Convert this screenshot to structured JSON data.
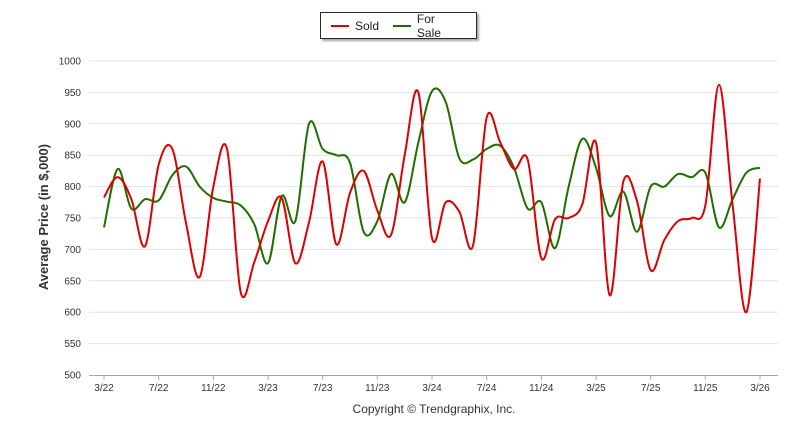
{
  "chart_data": {
    "type": "line",
    "title": "",
    "xlabel": "",
    "ylabel": "Average Price (in $,000)",
    "ylim": [
      500,
      1000
    ],
    "yticks": [
      "500",
      "550",
      "600",
      "650",
      "700",
      "750",
      "800",
      "850",
      "900",
      "950",
      "1000"
    ],
    "xticks": [
      "3/22",
      "7/22",
      "11/22",
      "3/23",
      "7/23",
      "11/23",
      "3/24",
      "7/24",
      "11/24",
      "3/25",
      "7/25",
      "11/25",
      "3/26"
    ],
    "x": [
      "3/22",
      "4/22",
      "5/22",
      "6/22",
      "7/22",
      "8/22",
      "9/22",
      "10/22",
      "11/22",
      "12/22",
      "1/23",
      "2/23",
      "3/23",
      "4/23",
      "5/23",
      "6/23",
      "7/23",
      "8/23",
      "9/23",
      "10/23",
      "11/23",
      "12/23",
      "1/24",
      "2/24",
      "3/24",
      "4/24",
      "5/24",
      "6/24",
      "7/24",
      "8/24",
      "9/24",
      "10/24",
      "11/24",
      "12/24",
      "1/25",
      "2/25",
      "3/25",
      "4/25",
      "5/25",
      "6/25",
      "7/25",
      "8/25",
      "9/25",
      "10/25",
      "11/25",
      "12/25",
      "1/26",
      "2/26",
      "3/26"
    ],
    "series": [
      {
        "name": "Sold",
        "color": "#dd0000",
        "values": [
          783,
          815,
          780,
          705,
          835,
          860,
          742,
          656,
          800,
          860,
          632,
          680,
          745,
          782,
          678,
          743,
          840,
          708,
          790,
          825,
          762,
          723,
          850,
          950,
          718,
          775,
          760,
          706,
          910,
          870,
          828,
          843,
          686,
          748,
          750,
          772,
          870,
          627,
          808,
          777,
          667,
          715,
          745,
          750,
          770,
          962,
          770,
          600,
          813
        ]
      },
      {
        "name": "For Sale",
        "color": "#1e6e00",
        "values": [
          735,
          828,
          765,
          780,
          778,
          818,
          832,
          800,
          782,
          776,
          770,
          740,
          678,
          785,
          745,
          900,
          860,
          850,
          838,
          728,
          745,
          820,
          775,
          870,
          952,
          935,
          845,
          843,
          860,
          865,
          830,
          765,
          775,
          702,
          800,
          876,
          830,
          753,
          792,
          728,
          800,
          800,
          820,
          815,
          822,
          735,
          780,
          822,
          830
        ]
      }
    ],
    "legend": [
      {
        "label": "Sold",
        "color": "#dd0000"
      },
      {
        "label": "For Sale",
        "color": "#1e6e00"
      }
    ],
    "legend_position": "top-center",
    "grid": true
  },
  "footer": {
    "copyright": "Copyright © Trendgraphix, Inc."
  }
}
